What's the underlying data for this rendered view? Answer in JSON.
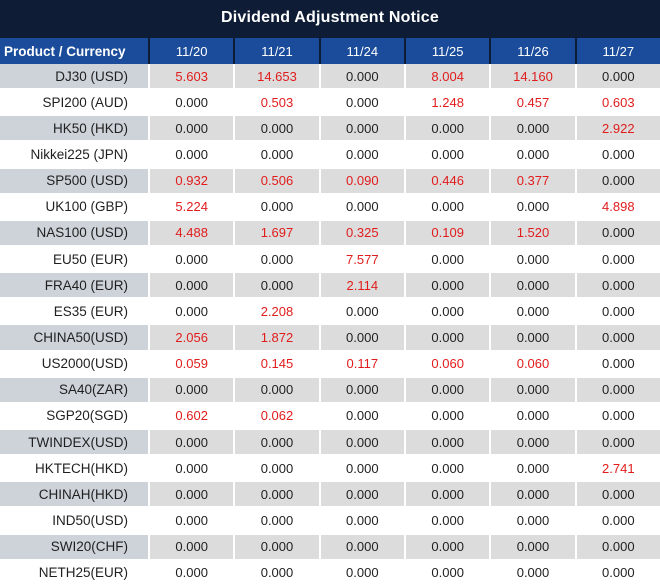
{
  "title": "Dividend Adjustment Notice",
  "table": {
    "columns": [
      "Product / Currency",
      "11/20",
      "11/21",
      "11/24",
      "11/25",
      "11/26",
      "11/27"
    ],
    "rows": [
      {
        "product": "DJ30 (USD)",
        "values": [
          "5.603",
          "14.653",
          "0.000",
          "8.004",
          "14.160",
          "0.000"
        ]
      },
      {
        "product": "SPI200 (AUD)",
        "values": [
          "0.000",
          "0.503",
          "0.000",
          "1.248",
          "0.457",
          "0.603"
        ]
      },
      {
        "product": "HK50 (HKD)",
        "values": [
          "0.000",
          "0.000",
          "0.000",
          "0.000",
          "0.000",
          "2.922"
        ]
      },
      {
        "product": "Nikkei225 (JPN)",
        "values": [
          "0.000",
          "0.000",
          "0.000",
          "0.000",
          "0.000",
          "0.000"
        ]
      },
      {
        "product": "SP500 (USD)",
        "values": [
          "0.932",
          "0.506",
          "0.090",
          "0.446",
          "0.377",
          "0.000"
        ]
      },
      {
        "product": "UK100 (GBP)",
        "values": [
          "5.224",
          "0.000",
          "0.000",
          "0.000",
          "0.000",
          "4.898"
        ]
      },
      {
        "product": "NAS100 (USD)",
        "values": [
          "4.488",
          "1.697",
          "0.325",
          "0.109",
          "1.520",
          "0.000"
        ]
      },
      {
        "product": "EU50 (EUR)",
        "values": [
          "0.000",
          "0.000",
          "7.577",
          "0.000",
          "0.000",
          "0.000"
        ]
      },
      {
        "product": "FRA40 (EUR)",
        "values": [
          "0.000",
          "0.000",
          "2.114",
          "0.000",
          "0.000",
          "0.000"
        ]
      },
      {
        "product": "ES35 (EUR)",
        "values": [
          "0.000",
          "2.208",
          "0.000",
          "0.000",
          "0.000",
          "0.000"
        ]
      },
      {
        "product": "CHINA50(USD)",
        "values": [
          "2.056",
          "1.872",
          "0.000",
          "0.000",
          "0.000",
          "0.000"
        ]
      },
      {
        "product": "US2000(USD)",
        "values": [
          "0.059",
          "0.145",
          "0.117",
          "0.060",
          "0.060",
          "0.000"
        ]
      },
      {
        "product": "SA40(ZAR)",
        "values": [
          "0.000",
          "0.000",
          "0.000",
          "0.000",
          "0.000",
          "0.000"
        ]
      },
      {
        "product": "SGP20(SGD)",
        "values": [
          "0.602",
          "0.062",
          "0.000",
          "0.000",
          "0.000",
          "0.000"
        ]
      },
      {
        "product": "TWINDEX(USD)",
        "values": [
          "0.000",
          "0.000",
          "0.000",
          "0.000",
          "0.000",
          "0.000"
        ]
      },
      {
        "product": "HKTECH(HKD)",
        "values": [
          "0.000",
          "0.000",
          "0.000",
          "0.000",
          "0.000",
          "2.741"
        ]
      },
      {
        "product": "CHINAH(HKD)",
        "values": [
          "0.000",
          "0.000",
          "0.000",
          "0.000",
          "0.000",
          "0.000"
        ]
      },
      {
        "product": "IND50(USD)",
        "values": [
          "0.000",
          "0.000",
          "0.000",
          "0.000",
          "0.000",
          "0.000"
        ]
      },
      {
        "product": "SWI20(CHF)",
        "values": [
          "0.000",
          "0.000",
          "0.000",
          "0.000",
          "0.000",
          "0.000"
        ]
      },
      {
        "product": "NETH25(EUR)",
        "values": [
          "0.000",
          "0.000",
          "0.000",
          "0.000",
          "0.000",
          "0.000"
        ]
      }
    ]
  },
  "colors": {
    "title_bg": "#0e1c36",
    "header_bg": "#1b4c9b",
    "alt_label_bg": "#ced3da",
    "alt_value_bg": "#dcdcdc",
    "text_dark": "#1f1f1f",
    "value_highlight": "#e11c1c"
  }
}
